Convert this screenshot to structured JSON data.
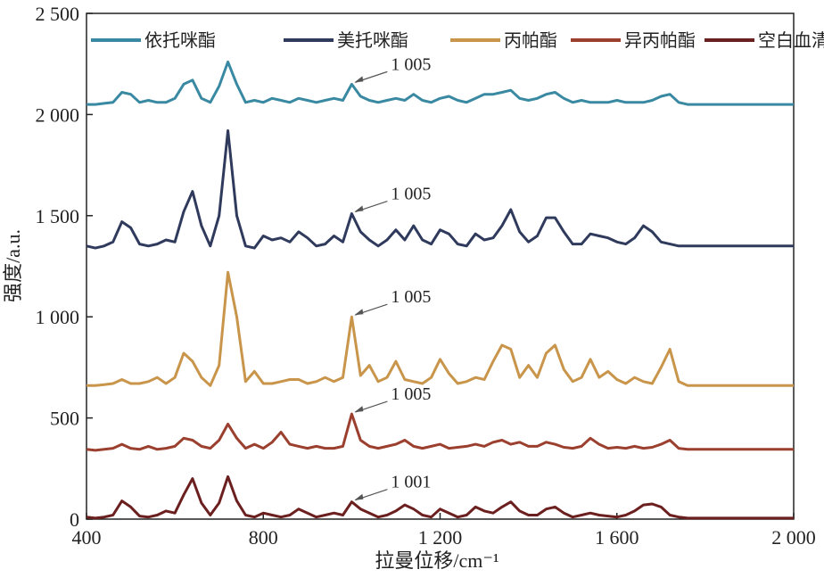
{
  "chart_data": {
    "type": "line",
    "xlabel": "拉曼位移/cm⁻¹",
    "ylabel": "强度/a.u.",
    "xlim": [
      400,
      2000
    ],
    "ylim": [
      0,
      2500
    ],
    "xticks": [
      400,
      800,
      {
        "value": 1200,
        "label": "1 200"
      },
      {
        "value": 1600,
        "label": "1 600"
      },
      {
        "value": 2000,
        "label": "2 000"
      }
    ],
    "yticks": [
      0,
      500,
      {
        "value": 1000,
        "label": "1 000"
      },
      {
        "value": 1500,
        "label": "1 500"
      },
      {
        "value": 2000,
        "label": "2 000"
      },
      {
        "value": 2500,
        "label": "2 500"
      }
    ],
    "grid": false,
    "legend": "top",
    "annotations": [
      "1 005",
      "1 005",
      "1 005",
      "1 005",
      "1 001"
    ],
    "x": [
      400,
      420,
      440,
      460,
      480,
      500,
      520,
      540,
      560,
      580,
      600,
      620,
      640,
      660,
      680,
      700,
      720,
      740,
      760,
      780,
      800,
      820,
      840,
      860,
      880,
      900,
      920,
      940,
      960,
      980,
      1000,
      1020,
      1040,
      1060,
      1080,
      1100,
      1120,
      1140,
      1160,
      1180,
      1200,
      1220,
      1240,
      1260,
      1280,
      1300,
      1320,
      1340,
      1360,
      1380,
      1400,
      1420,
      1440,
      1460,
      1480,
      1500,
      1520,
      1540,
      1560,
      1580,
      1600,
      1620,
      1640,
      1660,
      1680,
      1700,
      1720,
      1740,
      1760,
      1780,
      1800,
      1820,
      1840,
      1860,
      1880,
      1900,
      1920,
      1940,
      1960,
      1980,
      2000
    ],
    "series": [
      {
        "name": "依托咪酯",
        "color": "#3a89a2",
        "values": [
          2050,
          2050,
          2055,
          2060,
          2110,
          2100,
          2060,
          2070,
          2060,
          2060,
          2080,
          2150,
          2170,
          2080,
          2060,
          2140,
          2260,
          2150,
          2060,
          2070,
          2060,
          2080,
          2070,
          2060,
          2080,
          2070,
          2060,
          2070,
          2080,
          2070,
          2150,
          2090,
          2070,
          2060,
          2070,
          2080,
          2070,
          2100,
          2070,
          2060,
          2080,
          2090,
          2070,
          2060,
          2080,
          2100,
          2100,
          2110,
          2120,
          2080,
          2070,
          2080,
          2100,
          2110,
          2080,
          2060,
          2070,
          2060,
          2060,
          2060,
          2070,
          2060,
          2060,
          2060,
          2070,
          2090,
          2100,
          2060,
          2050,
          2050,
          2050,
          2050,
          2050,
          2050,
          2050,
          2050,
          2050,
          2050,
          2050,
          2050,
          2050
        ]
      },
      {
        "name": "美托咪酯",
        "color": "#2f3a5c",
        "values": [
          1350,
          1340,
          1350,
          1370,
          1470,
          1440,
          1360,
          1350,
          1360,
          1380,
          1370,
          1520,
          1620,
          1450,
          1350,
          1500,
          1920,
          1500,
          1350,
          1340,
          1400,
          1380,
          1390,
          1370,
          1420,
          1390,
          1350,
          1360,
          1400,
          1370,
          1510,
          1420,
          1380,
          1350,
          1380,
          1430,
          1380,
          1450,
          1380,
          1360,
          1430,
          1410,
          1360,
          1350,
          1410,
          1380,
          1390,
          1450,
          1530,
          1420,
          1370,
          1400,
          1490,
          1490,
          1420,
          1360,
          1360,
          1410,
          1400,
          1390,
          1370,
          1360,
          1390,
          1450,
          1420,
          1370,
          1360,
          1350,
          1350,
          1350,
          1350,
          1350,
          1350,
          1350,
          1350,
          1350,
          1350,
          1350,
          1350,
          1350,
          1350
        ]
      },
      {
        "name": "丙帕酯",
        "color": "#c8954b",
        "values": [
          660,
          660,
          665,
          670,
          690,
          670,
          670,
          680,
          700,
          670,
          700,
          820,
          780,
          700,
          660,
          760,
          1220,
          1000,
          680,
          730,
          670,
          670,
          680,
          690,
          690,
          670,
          680,
          700,
          680,
          700,
          1000,
          710,
          760,
          680,
          700,
          780,
          690,
          680,
          670,
          700,
          790,
          720,
          670,
          680,
          700,
          690,
          780,
          860,
          840,
          700,
          760,
          700,
          820,
          860,
          740,
          680,
          700,
          790,
          700,
          730,
          690,
          670,
          700,
          680,
          670,
          750,
          840,
          680,
          660,
          660,
          660,
          660,
          660,
          660,
          660,
          660,
          660,
          660,
          660,
          660,
          660
        ]
      },
      {
        "name": "异丙帕酯",
        "color": "#9b3f2f",
        "values": [
          345,
          340,
          345,
          350,
          370,
          350,
          345,
          360,
          345,
          350,
          360,
          400,
          390,
          360,
          350,
          390,
          470,
          400,
          350,
          370,
          350,
          380,
          430,
          370,
          360,
          350,
          360,
          350,
          350,
          360,
          520,
          390,
          360,
          350,
          360,
          370,
          390,
          360,
          350,
          360,
          370,
          350,
          355,
          360,
          370,
          360,
          380,
          390,
          370,
          380,
          360,
          360,
          380,
          370,
          355,
          350,
          360,
          400,
          370,
          350,
          355,
          350,
          360,
          350,
          355,
          370,
          390,
          350,
          345,
          345,
          345,
          345,
          345,
          345,
          345,
          345,
          345,
          345,
          345,
          345,
          345
        ]
      },
      {
        "name": "空白血清",
        "color": "#6c1f1f",
        "values": [
          10,
          5,
          10,
          20,
          90,
          60,
          15,
          10,
          20,
          40,
          30,
          120,
          200,
          80,
          20,
          80,
          210,
          90,
          20,
          10,
          30,
          20,
          10,
          20,
          50,
          30,
          10,
          20,
          30,
          20,
          85,
          50,
          30,
          10,
          20,
          40,
          70,
          50,
          20,
          10,
          50,
          30,
          10,
          20,
          60,
          40,
          30,
          60,
          85,
          40,
          20,
          20,
          50,
          60,
          30,
          10,
          20,
          30,
          20,
          15,
          10,
          20,
          40,
          70,
          75,
          60,
          20,
          10,
          5,
          5,
          5,
          5,
          5,
          5,
          5,
          5,
          5,
          5,
          5,
          5,
          5
        ]
      }
    ]
  }
}
